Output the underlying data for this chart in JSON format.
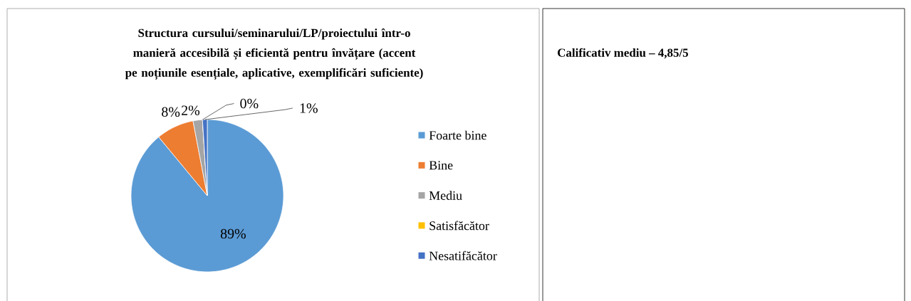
{
  "chart_data": {
    "type": "pie",
    "title": "Structura cursului/seminarului/LP/proiectului într-o manieră accesibilă și eficientă pentru învățare (accent pe noțiunile esențiale, aplicative, exemplificări suficiente)",
    "categories": [
      "Foarte bine",
      "Bine",
      "Mediu",
      "Satisfăcător",
      "Nesatifăcător"
    ],
    "values": [
      89,
      8,
      2,
      0,
      1
    ],
    "value_labels": [
      "89%",
      "8%",
      "2%",
      "0%",
      "1%"
    ],
    "colors": [
      "#5b9bd5",
      "#ed7d31",
      "#a5a5a5",
      "#ffc000",
      "#4472c4"
    ],
    "legend": "right",
    "annotations": [
      "Calificativ mediu – 4,85/5"
    ]
  }
}
